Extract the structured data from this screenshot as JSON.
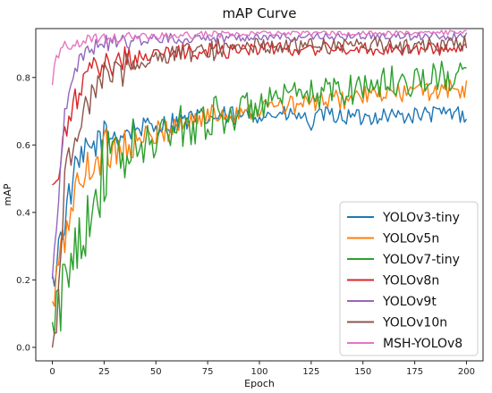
{
  "chart_data": {
    "type": "line",
    "title": "mAP Curve",
    "xlabel": "Epoch",
    "ylabel": "mAP",
    "xlim": [
      -8,
      208
    ],
    "ylim": [
      -0.04,
      0.945
    ],
    "xticks": [
      "0",
      "25",
      "50",
      "75",
      "100",
      "125",
      "150",
      "175",
      "200"
    ],
    "yticks": [
      "0.0",
      "0.2",
      "0.4",
      "0.6",
      "0.8"
    ],
    "grid": false,
    "legend_position": "lower-right",
    "series": [
      {
        "name": "YOLOv3-tiny",
        "color": "#1f77b4",
        "points": [
          [
            0,
            0.18
          ],
          [
            3,
            0.3
          ],
          [
            6,
            0.38
          ],
          [
            10,
            0.5
          ],
          [
            15,
            0.56
          ],
          [
            20,
            0.6
          ],
          [
            25,
            0.62
          ],
          [
            30,
            0.63
          ],
          [
            35,
            0.64
          ],
          [
            40,
            0.65
          ],
          [
            50,
            0.655
          ],
          [
            60,
            0.67
          ],
          [
            75,
            0.68
          ],
          [
            90,
            0.685
          ],
          [
            100,
            0.69
          ],
          [
            110,
            0.69
          ],
          [
            120,
            0.685
          ],
          [
            125,
            0.66
          ],
          [
            130,
            0.69
          ],
          [
            140,
            0.685
          ],
          [
            150,
            0.68
          ],
          [
            160,
            0.69
          ],
          [
            170,
            0.685
          ],
          [
            180,
            0.69
          ],
          [
            190,
            0.695
          ],
          [
            200,
            0.69
          ]
        ]
      },
      {
        "name": "YOLOv5n",
        "color": "#ff7f0e",
        "points": [
          [
            0,
            0.1
          ],
          [
            3,
            0.25
          ],
          [
            6,
            0.32
          ],
          [
            10,
            0.45
          ],
          [
            15,
            0.5
          ],
          [
            20,
            0.56
          ],
          [
            25,
            0.58
          ],
          [
            30,
            0.6
          ],
          [
            35,
            0.6
          ],
          [
            40,
            0.61
          ],
          [
            50,
            0.63
          ],
          [
            60,
            0.66
          ],
          [
            75,
            0.685
          ],
          [
            90,
            0.7
          ],
          [
            100,
            0.71
          ],
          [
            110,
            0.715
          ],
          [
            120,
            0.72
          ],
          [
            130,
            0.73
          ],
          [
            140,
            0.735
          ],
          [
            150,
            0.745
          ],
          [
            160,
            0.75
          ],
          [
            170,
            0.755
          ],
          [
            180,
            0.76
          ],
          [
            190,
            0.765
          ],
          [
            200,
            0.765
          ]
        ]
      },
      {
        "name": "YOLOv7-tiny",
        "color": "#2ca02c",
        "points": [
          [
            0,
            0.03
          ],
          [
            3,
            0.1
          ],
          [
            6,
            0.18
          ],
          [
            10,
            0.3
          ],
          [
            15,
            0.36
          ],
          [
            20,
            0.45
          ],
          [
            25,
            0.52
          ],
          [
            30,
            0.55
          ],
          [
            35,
            0.57
          ],
          [
            40,
            0.58
          ],
          [
            50,
            0.62
          ],
          [
            60,
            0.65
          ],
          [
            75,
            0.68
          ],
          [
            90,
            0.7
          ],
          [
            100,
            0.72
          ],
          [
            110,
            0.73
          ],
          [
            120,
            0.74
          ],
          [
            130,
            0.755
          ],
          [
            140,
            0.765
          ],
          [
            150,
            0.775
          ],
          [
            160,
            0.785
          ],
          [
            170,
            0.79
          ],
          [
            180,
            0.795
          ],
          [
            190,
            0.8
          ],
          [
            200,
            0.805
          ]
        ]
      },
      {
        "name": "YOLOv8n",
        "color": "#d62728",
        "points": [
          [
            0,
            0.47
          ],
          [
            3,
            0.5
          ],
          [
            6,
            0.62
          ],
          [
            10,
            0.72
          ],
          [
            15,
            0.78
          ],
          [
            20,
            0.82
          ],
          [
            25,
            0.84
          ],
          [
            30,
            0.85
          ],
          [
            40,
            0.86
          ],
          [
            50,
            0.87
          ],
          [
            60,
            0.875
          ],
          [
            75,
            0.88
          ],
          [
            90,
            0.885
          ],
          [
            100,
            0.885
          ],
          [
            125,
            0.885
          ],
          [
            150,
            0.885
          ],
          [
            175,
            0.885
          ],
          [
            200,
            0.885
          ]
        ]
      },
      {
        "name": "YOLOv9t",
        "color": "#9467bd",
        "points": [
          [
            0,
            0.2
          ],
          [
            3,
            0.45
          ],
          [
            6,
            0.7
          ],
          [
            10,
            0.82
          ],
          [
            15,
            0.87
          ],
          [
            20,
            0.89
          ],
          [
            25,
            0.9
          ],
          [
            30,
            0.905
          ],
          [
            40,
            0.91
          ],
          [
            50,
            0.915
          ],
          [
            60,
            0.915
          ],
          [
            75,
            0.918
          ],
          [
            100,
            0.92
          ],
          [
            125,
            0.92
          ],
          [
            150,
            0.922
          ],
          [
            175,
            0.922
          ],
          [
            200,
            0.922
          ]
        ]
      },
      {
        "name": "YOLOv10n",
        "color": "#8c564b",
        "points": [
          [
            0,
            0.0
          ],
          [
            2,
            0.01
          ],
          [
            4,
            0.3
          ],
          [
            6,
            0.5
          ],
          [
            10,
            0.62
          ],
          [
            15,
            0.7
          ],
          [
            20,
            0.76
          ],
          [
            25,
            0.8
          ],
          [
            30,
            0.82
          ],
          [
            40,
            0.84
          ],
          [
            50,
            0.86
          ],
          [
            60,
            0.87
          ],
          [
            75,
            0.88
          ],
          [
            90,
            0.89
          ],
          [
            100,
            0.895
          ],
          [
            125,
            0.895
          ],
          [
            150,
            0.895
          ],
          [
            175,
            0.895
          ],
          [
            200,
            0.9
          ]
        ]
      },
      {
        "name": "MSH-YOLOv8",
        "color": "#e377c2",
        "points": [
          [
            0,
            0.78
          ],
          [
            2,
            0.86
          ],
          [
            4,
            0.89
          ],
          [
            8,
            0.9
          ],
          [
            15,
            0.91
          ],
          [
            25,
            0.915
          ],
          [
            40,
            0.92
          ],
          [
            60,
            0.925
          ],
          [
            80,
            0.928
          ],
          [
            100,
            0.93
          ],
          [
            125,
            0.93
          ],
          [
            150,
            0.932
          ],
          [
            175,
            0.932
          ],
          [
            200,
            0.932
          ]
        ]
      }
    ]
  }
}
